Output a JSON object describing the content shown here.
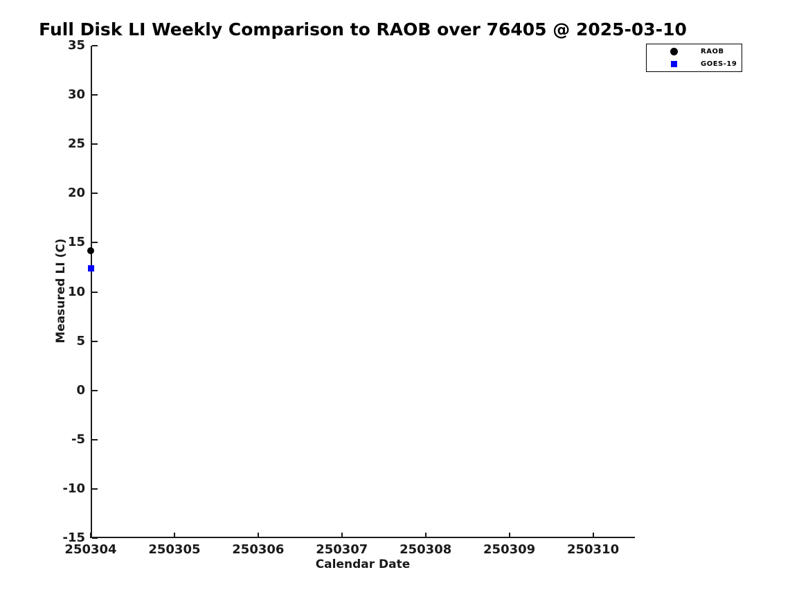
{
  "chart_data": {
    "type": "scatter",
    "title": "Full Disk LI Weekly Comparison to RAOB over 76405 @ 2025-03-10",
    "xlabel": "Calendar Date",
    "ylabel": "Measured LI (C)",
    "xlim": [
      250304,
      250310.5
    ],
    "ylim": [
      -15,
      35
    ],
    "xticks": [
      250304,
      250305,
      250306,
      250307,
      250308,
      250309,
      250310
    ],
    "yticks": [
      -15,
      -10,
      -5,
      0,
      5,
      10,
      15,
      20,
      25,
      30,
      35
    ],
    "grid": false,
    "background_color": "#ffffff",
    "axis_color": "#1a1a1a",
    "legend_position": "top-right",
    "series": [
      {
        "name": "RAOB",
        "marker": "circle",
        "color": "#000000",
        "points": [
          {
            "x": 250304,
            "y": 14.2
          }
        ]
      },
      {
        "name": "GOES-19",
        "marker": "square",
        "color": "#0000ff",
        "points": [
          {
            "x": 250304,
            "y": 12.4
          }
        ]
      }
    ]
  }
}
